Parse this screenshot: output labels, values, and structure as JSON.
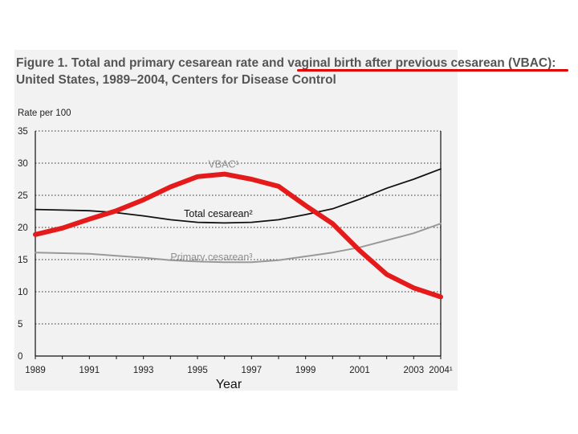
{
  "title_line1": "Figure 1. Total and primary cesarean rate and vaginal birth after previous cesarean (VBAC):",
  "title_line2": "United States, 1989–2004, Centers for Disease Control",
  "chart_data": {
    "type": "line",
    "title": "Figure 1. Total and primary cesarean rate and vaginal birth after previous cesarean (VBAC): United States, 1989–2004, Centers for Disease Control",
    "ylabel": "Rate per 100",
    "xlabel": "Year",
    "xlim": [
      1989,
      2004
    ],
    "ylim": [
      0,
      35
    ],
    "y_ticks": [
      0,
      5,
      10,
      15,
      20,
      25,
      30,
      35
    ],
    "x_ticks": [
      "1989",
      "1991",
      "1993",
      "1995",
      "1997",
      "1999",
      "2001",
      "2003",
      "2004¹"
    ],
    "x_tick_values": [
      1989,
      1991,
      1993,
      1995,
      1997,
      1999,
      2001,
      2003,
      2004
    ],
    "grid": true,
    "series": [
      {
        "name": "VBAC¹",
        "label": "VBAC¹",
        "color": "#e51a1a",
        "width": 6,
        "x": [
          1989,
          1990,
          1991,
          1992,
          1993,
          1994,
          1995,
          1996,
          1997,
          1998,
          1999,
          2000,
          2001,
          2002,
          2003,
          2004
        ],
        "values": [
          18.9,
          19.9,
          21.3,
          22.6,
          24.3,
          26.3,
          27.9,
          28.3,
          27.5,
          26.4,
          23.4,
          20.6,
          16.4,
          12.7,
          10.6,
          9.2
        ]
      },
      {
        "name": "Total cesarean²",
        "label": "Total cesarean²",
        "color": "#111111",
        "width": 1.8,
        "x": [
          1989,
          1990,
          1991,
          1992,
          1993,
          1994,
          1995,
          1996,
          1997,
          1998,
          1999,
          2000,
          2001,
          2002,
          2003,
          2004
        ],
        "values": [
          22.8,
          22.7,
          22.6,
          22.3,
          21.8,
          21.2,
          20.8,
          20.7,
          20.8,
          21.2,
          22.0,
          22.9,
          24.4,
          26.1,
          27.5,
          29.1
        ]
      },
      {
        "name": "Primary cesarean³",
        "label": "Primary cesarean³",
        "color": "#999999",
        "width": 2,
        "x": [
          1989,
          1990,
          1991,
          1992,
          1993,
          1994,
          1995,
          1996,
          1997,
          1998,
          1999,
          2000,
          2001,
          2002,
          2003,
          2004
        ],
        "values": [
          16.1,
          16.0,
          15.9,
          15.6,
          15.3,
          14.9,
          14.7,
          14.6,
          14.6,
          14.9,
          15.5,
          16.1,
          16.9,
          18.0,
          19.1,
          20.6
        ]
      }
    ],
    "annotations": [
      {
        "text": "VBAC¹",
        "color": "#8f8f8f",
        "x": 1995.4,
        "y": 29.3
      },
      {
        "text": "Total cesarean²",
        "color": "#111111",
        "x": 1994.5,
        "y": 21.6
      },
      {
        "text": "Primary cesarean³",
        "color": "#8f8f8f",
        "x": 1994.0,
        "y": 14.9
      }
    ]
  }
}
